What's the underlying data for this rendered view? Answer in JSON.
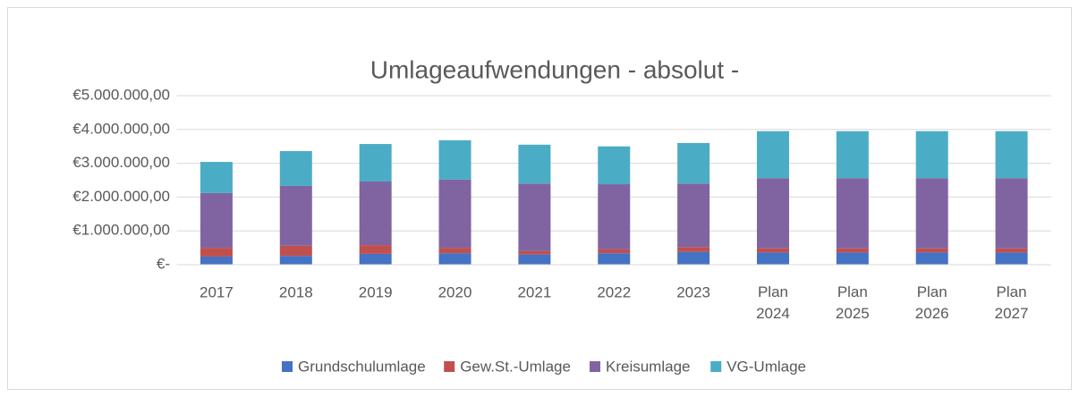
{
  "chart_data": {
    "type": "bar",
    "stacked": true,
    "title": "Umlageaufwendungen - absolut -",
    "categories": [
      "2017",
      "2018",
      "2019",
      "2020",
      "2021",
      "2022",
      "2023",
      "Plan 2024",
      "Plan 2025",
      "Plan 2026",
      "Plan 2027"
    ],
    "series": [
      {
        "name": "Grundschulumlage",
        "color": "#4472c4",
        "values": [
          240000,
          260000,
          320000,
          340000,
          300000,
          340000,
          380000,
          360000,
          360000,
          360000,
          360000
        ]
      },
      {
        "name": "Gew.St.-Umlage",
        "color": "#c0504d",
        "values": [
          260000,
          300000,
          260000,
          160000,
          100000,
          120000,
          140000,
          120000,
          120000,
          120000,
          120000
        ]
      },
      {
        "name": "Kreisumlage",
        "color": "#8064a2",
        "values": [
          1620000,
          1770000,
          1880000,
          2020000,
          2000000,
          1920000,
          1880000,
          2080000,
          2080000,
          2080000,
          2080000
        ]
      },
      {
        "name": "VG-Umlage",
        "color": "#4bacc6",
        "values": [
          920000,
          1030000,
          1110000,
          1160000,
          1150000,
          1120000,
          1200000,
          1390000,
          1390000,
          1390000,
          1390000
        ]
      }
    ],
    "ylim": [
      0,
      5000000
    ],
    "yticks": [
      {
        "value": 0,
        "label": "€-"
      },
      {
        "value": 1000000,
        "label": "€1.000.000,00"
      },
      {
        "value": 2000000,
        "label": "€2.000.000,00"
      },
      {
        "value": 3000000,
        "label": "€3.000.000,00"
      },
      {
        "value": 4000000,
        "label": "€4.000.000,00"
      },
      {
        "value": 5000000,
        "label": "€5.000.000,00"
      }
    ],
    "grid": true,
    "legend": "bottom"
  }
}
